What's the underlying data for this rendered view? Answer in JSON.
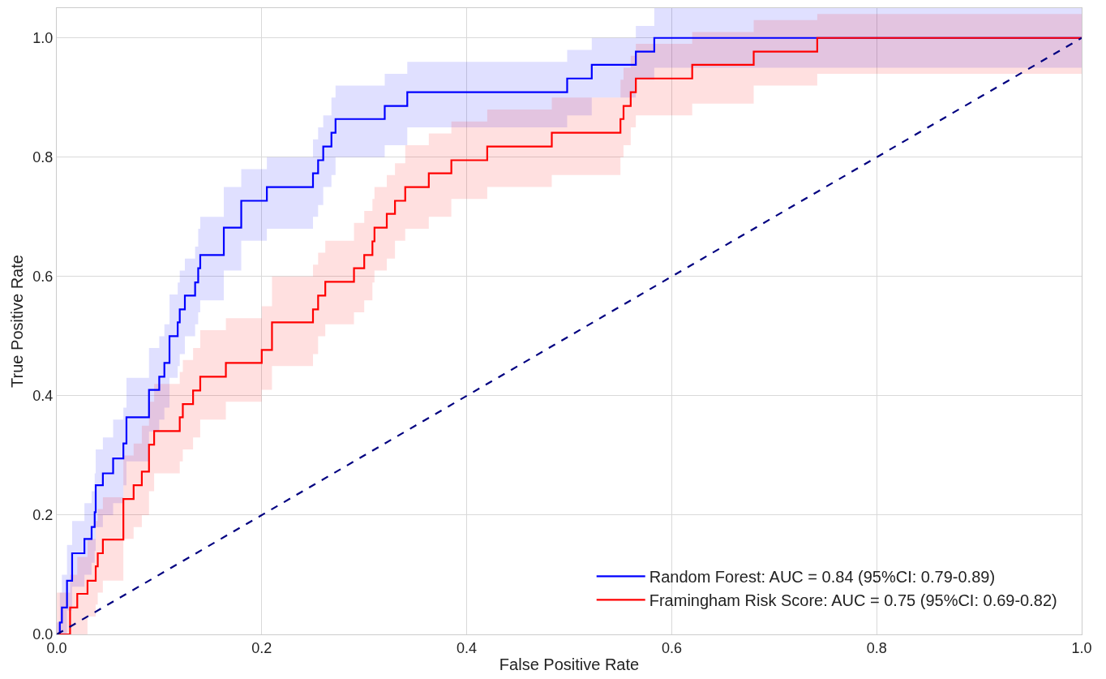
{
  "chart_data": {
    "type": "step",
    "xlabel": "False Positive Rate",
    "ylabel": "True Positive Rate",
    "xlim": [
      0,
      1
    ],
    "ylim": [
      0,
      1.05
    ],
    "xticks": [
      {
        "value": 0,
        "label": "0.0"
      },
      {
        "value": 0.2,
        "label": "0.2"
      },
      {
        "value": 0.4,
        "label": "0.4"
      },
      {
        "value": 0.6,
        "label": "0.6"
      },
      {
        "value": 0.8,
        "label": "0.8"
      },
      {
        "value": 1,
        "label": "1.0"
      }
    ],
    "yticks": [
      {
        "value": 0,
        "label": "0.0"
      },
      {
        "value": 0.2,
        "label": "0.2"
      },
      {
        "value": 0.4,
        "label": "0.4"
      },
      {
        "value": 0.6,
        "label": "0.6"
      },
      {
        "value": 0.8,
        "label": "0.8"
      },
      {
        "value": 1,
        "label": "1.0"
      }
    ],
    "grid": true,
    "legend": "bottom right",
    "series": [
      {
        "name": "Random Forest: AUC = 0.84 (95%CI: 0.79-0.89)",
        "color": "#0000ff",
        "x": [
          0,
          0.003,
          0.005,
          0.01,
          0.015,
          0.027,
          0.034,
          0.037,
          0.038,
          0.045,
          0.055,
          0.065,
          0.068,
          0.09,
          0.1,
          0.105,
          0.11,
          0.118,
          0.12,
          0.125,
          0.135,
          0.138,
          0.14,
          0.163,
          0.18,
          0.205,
          0.25,
          0.255,
          0.26,
          0.268,
          0.272,
          0.32,
          0.342,
          0.498,
          0.522,
          0.565,
          0.583,
          1
        ],
        "values": [
          0,
          0.02,
          0.045,
          0.09,
          0.136,
          0.16,
          0.18,
          0.205,
          0.25,
          0.27,
          0.295,
          0.32,
          0.364,
          0.41,
          0.432,
          0.455,
          0.5,
          0.523,
          0.545,
          0.568,
          0.59,
          0.614,
          0.636,
          0.682,
          0.727,
          0.75,
          0.773,
          0.795,
          0.818,
          0.841,
          0.864,
          0.886,
          0.909,
          0.932,
          0.955,
          0.977,
          1.0,
          1.0
        ],
        "lower": [
          0,
          0,
          0,
          0.04,
          0.08,
          0.1,
          0.12,
          0.14,
          0.18,
          0.2,
          0.22,
          0.25,
          0.29,
          0.34,
          0.36,
          0.38,
          0.43,
          0.45,
          0.47,
          0.5,
          0.52,
          0.54,
          0.56,
          0.61,
          0.66,
          0.68,
          0.7,
          0.72,
          0.75,
          0.77,
          0.8,
          0.82,
          0.85,
          0.87,
          0.9,
          0.93,
          0.95,
          0.95
        ],
        "upper": [
          0.02,
          0.07,
          0.1,
          0.15,
          0.19,
          0.22,
          0.24,
          0.27,
          0.31,
          0.33,
          0.36,
          0.38,
          0.43,
          0.48,
          0.5,
          0.52,
          0.57,
          0.59,
          0.61,
          0.63,
          0.65,
          0.68,
          0.7,
          0.75,
          0.78,
          0.8,
          0.83,
          0.85,
          0.87,
          0.9,
          0.92,
          0.94,
          0.96,
          0.98,
          1.0,
          1.02,
          1.05,
          1.05
        ]
      },
      {
        "name": "Framingham Risk Score: AUC = 0.75 (95%CI: 0.69-0.82)",
        "color": "#ff0000",
        "x": [
          0,
          0.013,
          0.02,
          0.03,
          0.038,
          0.04,
          0.045,
          0.065,
          0.075,
          0.083,
          0.09,
          0.095,
          0.12,
          0.123,
          0.133,
          0.14,
          0.165,
          0.2,
          0.21,
          0.25,
          0.255,
          0.262,
          0.29,
          0.3,
          0.308,
          0.31,
          0.322,
          0.33,
          0.34,
          0.363,
          0.385,
          0.42,
          0.483,
          0.55,
          0.553,
          0.56,
          0.565,
          0.62,
          0.68,
          0.742,
          1
        ],
        "values": [
          0,
          0.045,
          0.068,
          0.09,
          0.114,
          0.136,
          0.159,
          0.227,
          0.25,
          0.273,
          0.318,
          0.341,
          0.364,
          0.386,
          0.409,
          0.432,
          0.455,
          0.477,
          0.523,
          0.545,
          0.568,
          0.591,
          0.614,
          0.636,
          0.659,
          0.682,
          0.705,
          0.727,
          0.75,
          0.773,
          0.795,
          0.818,
          0.841,
          0.864,
          0.886,
          0.909,
          0.932,
          0.955,
          0.977,
          1.0,
          1.0
        ],
        "lower": [
          0,
          0,
          0,
          0.03,
          0.05,
          0.07,
          0.09,
          0.16,
          0.18,
          0.2,
          0.24,
          0.27,
          0.29,
          0.31,
          0.33,
          0.36,
          0.39,
          0.41,
          0.45,
          0.47,
          0.5,
          0.52,
          0.54,
          0.56,
          0.59,
          0.61,
          0.63,
          0.66,
          0.68,
          0.7,
          0.73,
          0.75,
          0.77,
          0.8,
          0.82,
          0.85,
          0.87,
          0.89,
          0.92,
          0.94,
          0.94
        ],
        "upper": [
          0.07,
          0.1,
          0.13,
          0.16,
          0.19,
          0.21,
          0.23,
          0.3,
          0.32,
          0.35,
          0.39,
          0.42,
          0.44,
          0.46,
          0.48,
          0.51,
          0.53,
          0.55,
          0.6,
          0.62,
          0.64,
          0.66,
          0.69,
          0.71,
          0.73,
          0.75,
          0.77,
          0.79,
          0.82,
          0.84,
          0.86,
          0.88,
          0.9,
          0.93,
          0.95,
          0.97,
          0.99,
          1.01,
          1.03,
          1.04,
          1.04
        ]
      },
      {
        "type": "line",
        "color": "#000080",
        "line_style": "dashed",
        "x": [
          0,
          1
        ],
        "values": [
          0,
          1
        ]
      }
    ]
  }
}
